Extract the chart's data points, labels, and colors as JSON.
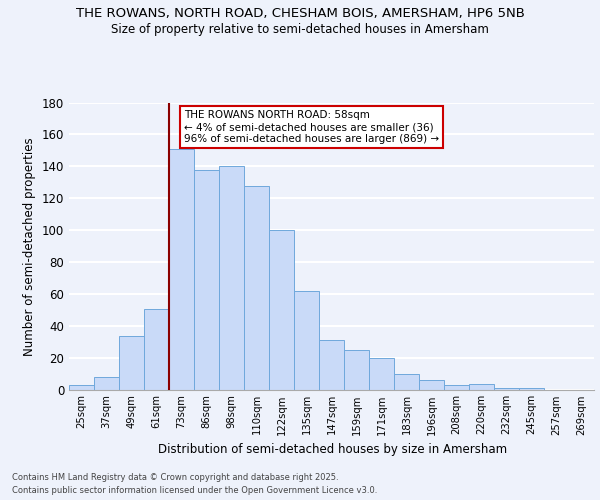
{
  "title": "THE ROWANS, NORTH ROAD, CHESHAM BOIS, AMERSHAM, HP6 5NB",
  "subtitle": "Size of property relative to semi-detached houses in Amersham",
  "xlabel": "Distribution of semi-detached houses by size in Amersham",
  "ylabel": "Number of semi-detached properties",
  "bar_labels": [
    "25sqm",
    "37sqm",
    "49sqm",
    "61sqm",
    "73sqm",
    "86sqm",
    "98sqm",
    "110sqm",
    "122sqm",
    "135sqm",
    "147sqm",
    "159sqm",
    "171sqm",
    "183sqm",
    "196sqm",
    "208sqm",
    "220sqm",
    "232sqm",
    "245sqm",
    "257sqm",
    "269sqm"
  ],
  "bar_values": [
    3,
    8,
    34,
    51,
    151,
    138,
    140,
    128,
    100,
    62,
    31,
    25,
    20,
    10,
    6,
    3,
    4,
    1,
    1,
    0,
    0
  ],
  "bar_color": "#c9daf8",
  "bar_edge_color": "#6fa8dc",
  "background_color": "#eef2fb",
  "grid_color": "#ffffff",
  "vline_color": "#8b0000",
  "annotation_title": "THE ROWANS NORTH ROAD: 58sqm",
  "annotation_line1": "← 4% of semi-detached houses are smaller (36)",
  "annotation_line2": "96% of semi-detached houses are larger (869) →",
  "annotation_box_color": "#ffffff",
  "annotation_border_color": "#cc0000",
  "ylim": [
    0,
    180
  ],
  "yticks": [
    0,
    20,
    40,
    60,
    80,
    100,
    120,
    140,
    160,
    180
  ],
  "footnote1": "Contains HM Land Registry data © Crown copyright and database right 2025.",
  "footnote2": "Contains public sector information licensed under the Open Government Licence v3.0.",
  "n_bars": 21
}
